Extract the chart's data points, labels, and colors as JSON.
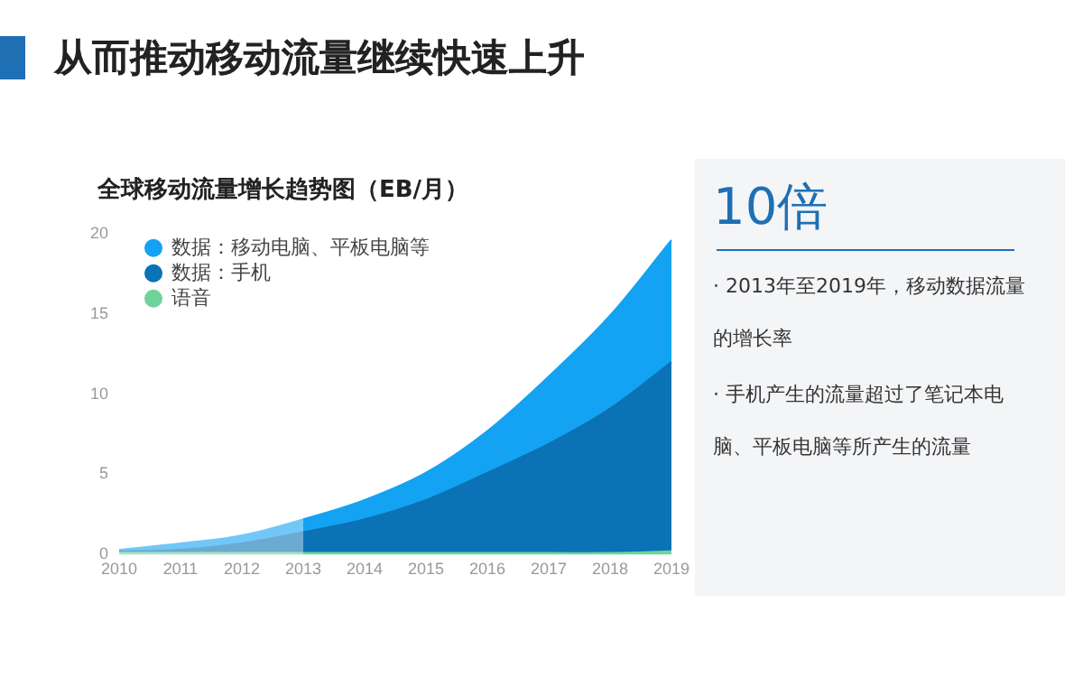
{
  "chart_data": {
    "type": "area",
    "title": "全球移动流量增长趋势图（EB/月）",
    "stacked": true,
    "categories": [
      "2010",
      "2011",
      "2012",
      "2013",
      "2014",
      "2015",
      "2016",
      "2017",
      "2018",
      "2019"
    ],
    "series": [
      {
        "name": "语音",
        "color": "#6fd39b",
        "values": [
          0.1,
          0.1,
          0.1,
          0.1,
          0.1,
          0.1,
          0.1,
          0.1,
          0.1,
          0.2
        ]
      },
      {
        "name": "数据：手机",
        "color": "#0b72b5",
        "values": [
          0.1,
          0.2,
          0.6,
          1.3,
          2.1,
          3.3,
          5.0,
          6.8,
          9.0,
          11.8
        ]
      },
      {
        "name": "数据：移动电脑、平板电脑等",
        "color": "#13a3f2",
        "values": [
          0.1,
          0.4,
          0.5,
          0.8,
          1.2,
          1.7,
          2.6,
          4.2,
          5.8,
          7.6
        ]
      }
    ],
    "ylim": [
      0,
      20
    ],
    "yticks": [
      0,
      5,
      10,
      15,
      20
    ],
    "grid": false,
    "legend": "top left",
    "marker": "none",
    "bands": [
      {
        "axis": "x",
        "from": "2010",
        "to": "2013",
        "color": "#ffffff"
      }
    ],
    "annotations": [
      "从而推动移动流量继续快速上升",
      "10倍",
      "· 2013年至2019年，移动数据流量的增长率",
      "· 手机产生的流量超过了笔记本电脑、平板电脑等所产生的流量"
    ]
  }
}
